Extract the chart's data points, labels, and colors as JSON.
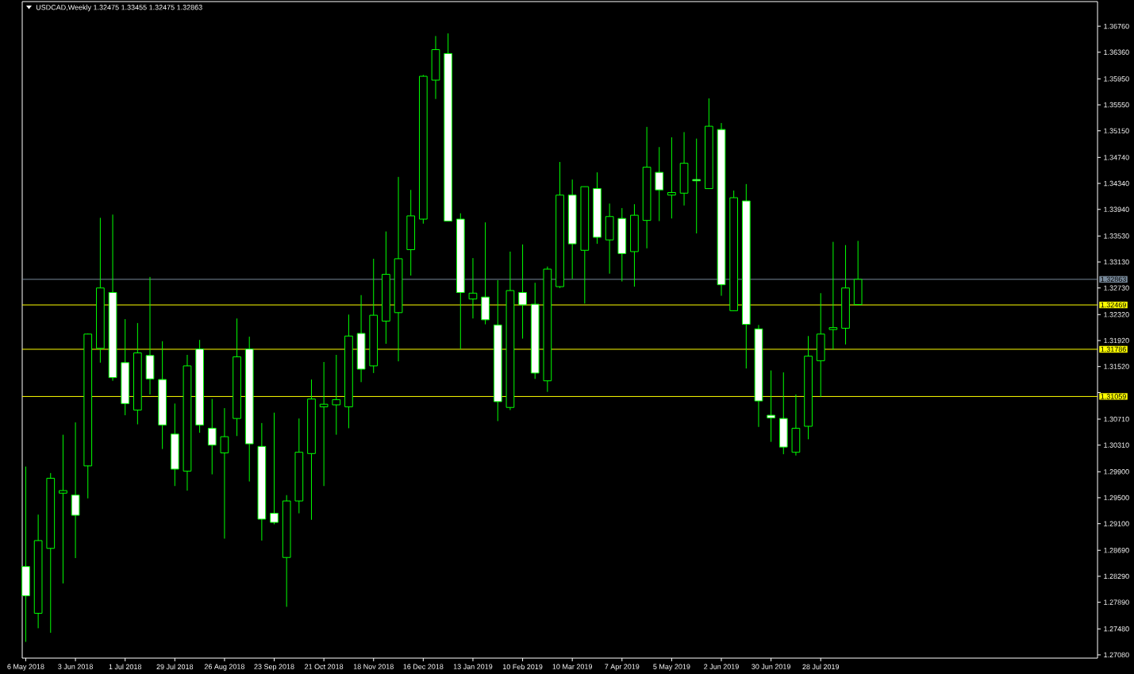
{
  "chart_data": {
    "type": "candlestick",
    "title": "USDCAD,Weekly  1.32475 1.33455 1.32475 1.32863",
    "x": [
      "2018-05-06",
      "2018-05-13",
      "2018-05-20",
      "2018-05-27",
      "2018-06-03",
      "2018-06-10",
      "2018-06-17",
      "2018-06-24",
      "2018-07-01",
      "2018-07-08",
      "2018-07-15",
      "2018-07-22",
      "2018-07-29",
      "2018-08-05",
      "2018-08-12",
      "2018-08-19",
      "2018-08-26",
      "2018-09-02",
      "2018-09-09",
      "2018-09-16",
      "2018-09-23",
      "2018-09-30",
      "2018-10-07",
      "2018-10-14",
      "2018-10-21",
      "2018-10-28",
      "2018-11-04",
      "2018-11-11",
      "2018-11-18",
      "2018-11-25",
      "2018-12-02",
      "2018-12-09",
      "2018-12-16",
      "2018-12-23",
      "2018-12-30",
      "2019-01-06",
      "2019-01-13",
      "2019-01-20",
      "2019-01-27",
      "2019-02-03",
      "2019-02-10",
      "2019-02-17",
      "2019-02-24",
      "2019-03-03",
      "2019-03-10",
      "2019-03-17",
      "2019-03-24",
      "2019-03-31",
      "2019-04-07",
      "2019-04-14",
      "2019-04-21",
      "2019-04-28",
      "2019-05-05",
      "2019-05-12",
      "2019-05-19",
      "2019-05-26",
      "2019-06-02",
      "2019-06-09",
      "2019-06-16",
      "2019-06-23",
      "2019-06-30",
      "2019-07-07",
      "2019-07-14",
      "2019-07-21",
      "2019-07-28",
      "2019-08-04",
      "2019-08-11",
      "2019-08-18"
    ],
    "ohlc": [
      [
        1.2844,
        1.2998,
        1.2728,
        1.2799
      ],
      [
        1.2772,
        1.2924,
        1.2749,
        1.2884
      ],
      [
        1.2872,
        1.2988,
        1.2742,
        1.298
      ],
      [
        1.2957,
        1.3047,
        1.2818,
        1.2961
      ],
      [
        1.2954,
        1.3066,
        1.2857,
        1.2923
      ],
      [
        1.2999,
        1.3203,
        1.2949,
        1.3202
      ],
      [
        1.318,
        1.3381,
        1.3158,
        1.3273
      ],
      [
        1.3266,
        1.3386,
        1.313,
        1.3135
      ],
      [
        1.3158,
        1.3225,
        1.3077,
        1.3095
      ],
      [
        1.3085,
        1.3219,
        1.3063,
        1.3173
      ],
      [
        1.3169,
        1.329,
        1.3109,
        1.3133
      ],
      [
        1.3132,
        1.3191,
        1.3025,
        1.3062
      ],
      [
        1.3048,
        1.3095,
        1.2968,
        1.2994
      ],
      [
        1.2991,
        1.317,
        1.2961,
        1.3153
      ],
      [
        1.3179,
        1.3193,
        1.305,
        1.3062
      ],
      [
        1.3057,
        1.3102,
        1.2986,
        1.3031
      ],
      [
        1.3019,
        1.3088,
        1.2887,
        1.3044
      ],
      [
        1.3072,
        1.3226,
        1.3045,
        1.3167
      ],
      [
        1.3179,
        1.3198,
        1.2975,
        1.3033
      ],
      [
        1.3029,
        1.3065,
        1.2884,
        1.2917
      ],
      [
        1.2926,
        1.3081,
        1.2909,
        1.2912
      ],
      [
        1.2858,
        1.2954,
        1.2782,
        1.2945
      ],
      [
        1.2945,
        1.3072,
        1.2926,
        1.302
      ],
      [
        1.3018,
        1.3132,
        1.2916,
        1.3102
      ],
      [
        1.309,
        1.3159,
        1.2968,
        1.3094
      ],
      [
        1.3093,
        1.317,
        1.3047,
        1.3101
      ],
      [
        1.309,
        1.3232,
        1.3057,
        1.3199
      ],
      [
        1.3203,
        1.3262,
        1.3128,
        1.3148
      ],
      [
        1.3153,
        1.3318,
        1.3142,
        1.3231
      ],
      [
        1.3222,
        1.336,
        1.3187,
        1.3294
      ],
      [
        1.3235,
        1.3444,
        1.316,
        1.3318
      ],
      [
        1.3332,
        1.3424,
        1.3292,
        1.3384
      ],
      [
        1.3379,
        1.3601,
        1.3372,
        1.3599
      ],
      [
        1.3593,
        1.3661,
        1.3564,
        1.364
      ],
      [
        1.3634,
        1.3665,
        1.3376,
        1.3376
      ],
      [
        1.3379,
        1.3388,
        1.3179,
        1.3266
      ],
      [
        1.3256,
        1.3319,
        1.3226,
        1.3265
      ],
      [
        1.3259,
        1.3374,
        1.3217,
        1.3224
      ],
      [
        1.3216,
        1.3285,
        1.3068,
        1.3098
      ],
      [
        1.3089,
        1.3329,
        1.3085,
        1.3269
      ],
      [
        1.3266,
        1.334,
        1.3195,
        1.3247
      ],
      [
        1.3248,
        1.3281,
        1.3133,
        1.3142
      ],
      [
        1.313,
        1.3306,
        1.3113,
        1.3302
      ],
      [
        1.3275,
        1.3467,
        1.3273,
        1.3416
      ],
      [
        1.3416,
        1.344,
        1.3287,
        1.3341
      ],
      [
        1.3331,
        1.3429,
        1.3249,
        1.3429
      ],
      [
        1.3426,
        1.3451,
        1.3341,
        1.3351
      ],
      [
        1.3347,
        1.3403,
        1.3295,
        1.3383
      ],
      [
        1.338,
        1.3396,
        1.3283,
        1.3326
      ],
      [
        1.3329,
        1.3402,
        1.3275,
        1.3385
      ],
      [
        1.3377,
        1.3521,
        1.3334,
        1.3459
      ],
      [
        1.3451,
        1.349,
        1.3376,
        1.3424
      ],
      [
        1.3416,
        1.3505,
        1.338,
        1.342
      ],
      [
        1.3419,
        1.3513,
        1.34,
        1.3465
      ],
      [
        1.344,
        1.3503,
        1.3357,
        1.3438
      ],
      [
        1.3426,
        1.3565,
        1.3426,
        1.3522
      ],
      [
        1.3517,
        1.3527,
        1.3261,
        1.3278
      ],
      [
        1.3238,
        1.3423,
        1.3238,
        1.3412
      ],
      [
        1.3407,
        1.3433,
        1.3149,
        1.3217
      ],
      [
        1.321,
        1.3216,
        1.3059,
        1.3099
      ],
      [
        1.3077,
        1.3146,
        1.3036,
        1.3073
      ],
      [
        1.3072,
        1.3143,
        1.3017,
        1.3028
      ],
      [
        1.302,
        1.3109,
        1.3015,
        1.3057
      ],
      [
        1.306,
        1.3199,
        1.304,
        1.3168
      ],
      [
        1.3161,
        1.3265,
        1.3105,
        1.3202
      ],
      [
        1.3209,
        1.3344,
        1.3178,
        1.3212
      ],
      [
        1.3211,
        1.3339,
        1.3186,
        1.3273
      ],
      [
        1.32475,
        1.33455,
        1.32475,
        1.32863
      ]
    ],
    "color": "#00ff00",
    "colors": [
      "#ffffff",
      "#000000",
      "#000000",
      "#000000",
      "#ffffff",
      "#000000",
      "#000000",
      "#ffffff",
      "#ffffff",
      "#000000",
      "#ffffff",
      "#ffffff",
      "#ffffff",
      "#000000",
      "#ffffff",
      "#ffffff",
      "#000000",
      "#000000",
      "#ffffff",
      "#ffffff",
      "#ffffff",
      "#000000",
      "#000000",
      "#000000",
      "#000000",
      "#000000",
      "#000000",
      "#ffffff",
      "#000000",
      "#000000",
      "#000000",
      "#000000",
      "#000000",
      "#000000",
      "#ffffff",
      "#ffffff",
      "#000000",
      "#ffffff",
      "#ffffff",
      "#000000",
      "#ffffff",
      "#ffffff",
      "#000000",
      "#000000",
      "#ffffff",
      "#000000",
      "#ffffff",
      "#000000",
      "#ffffff",
      "#000000",
      "#000000",
      "#ffffff",
      "#000000",
      "#000000",
      "#ffffff",
      "#000000",
      "#ffffff",
      "#000000",
      "#ffffff",
      "#ffffff",
      "#ffffff",
      "#ffffff",
      "#000000",
      "#000000",
      "#000000",
      "#000000",
      "#000000",
      "#000000"
    ],
    "xlim": [
      "2018-05-04",
      "2019-12-31"
    ],
    "xticks": [
      {
        "value": "2018-05-06",
        "label": "6 May 2018"
      },
      {
        "value": "2018-06-03",
        "label": "3 Jun 2018"
      },
      {
        "value": "2018-07-01",
        "label": "1 Jul 2018"
      },
      {
        "value": "2018-07-29",
        "label": "29 Jul 2018"
      },
      {
        "value": "2018-08-26",
        "label": "26 Aug 2018"
      },
      {
        "value": "2018-09-23",
        "label": "23 Sep 2018"
      },
      {
        "value": "2018-10-21",
        "label": "21 Oct 2018"
      },
      {
        "value": "2018-11-18",
        "label": "18 Nov 2018"
      },
      {
        "value": "2018-12-16",
        "label": "16 Dec 2018"
      },
      {
        "value": "2019-01-13",
        "label": "13 Jan 2019"
      },
      {
        "value": "2019-02-10",
        "label": "10 Feb 2019"
      },
      {
        "value": "2019-03-10",
        "label": "10 Mar 2019"
      },
      {
        "value": "2019-04-07",
        "label": "7 Apr 2019"
      },
      {
        "value": "2019-05-05",
        "label": "5 May 2019"
      },
      {
        "value": "2019-06-02",
        "label": "2 Jun 2019"
      },
      {
        "value": "2019-06-30",
        "label": "30 Jun 2019"
      },
      {
        "value": "2019-07-28",
        "label": "28 Jul 2019"
      }
    ],
    "ylim": [
      1.2703,
      1.3714
    ],
    "yticks": [
      {
        "value": 1.2708,
        "label": "1.27080"
      },
      {
        "value": 1.2748,
        "label": "1.27480"
      },
      {
        "value": 1.2789,
        "label": "1.27890"
      },
      {
        "value": 1.2829,
        "label": "1.28290"
      },
      {
        "value": 1.2869,
        "label": "1.28690"
      },
      {
        "value": 1.291,
        "label": "1.29100"
      },
      {
        "value": 1.295,
        "label": "1.29500"
      },
      {
        "value": 1.299,
        "label": "1.29900"
      },
      {
        "value": 1.3031,
        "label": "1.30310"
      },
      {
        "value": 1.3071,
        "label": "1.30710"
      },
      {
        "value": 1.3112,
        "label": null
      },
      {
        "value": 1.3152,
        "label": "1.31520"
      },
      {
        "value": 1.3192,
        "label": "1.31920"
      },
      {
        "value": 1.3232,
        "label": "1.32320"
      },
      {
        "value": 1.3273,
        "label": "1.32730"
      },
      {
        "value": 1.3313,
        "label": "1.33130"
      },
      {
        "value": 1.3353,
        "label": "1.33530"
      },
      {
        "value": 1.3394,
        "label": "1.33940"
      },
      {
        "value": 1.3434,
        "label": "1.34340"
      },
      {
        "value": 1.3474,
        "label": "1.34740"
      },
      {
        "value": 1.3515,
        "label": "1.35150"
      },
      {
        "value": 1.3555,
        "label": "1.35550"
      },
      {
        "value": 1.3595,
        "label": "1.35950"
      },
      {
        "value": 1.3636,
        "label": "1.36360"
      },
      {
        "value": 1.3676,
        "label": "1.36760"
      }
    ],
    "ref_lines": [
      {
        "axis": "y",
        "value": 1.32863,
        "label": "1.32863",
        "color": "#778899"
      },
      {
        "axis": "y",
        "value": 1.32469,
        "label": "1.32469",
        "color": "#ffff00"
      },
      {
        "axis": "y",
        "value": 1.31786,
        "label": "1.31786",
        "color": "#ffff00"
      },
      {
        "axis": "y",
        "value": 1.31059,
        "label": "1.31059",
        "color": "#ffff00"
      }
    ]
  }
}
